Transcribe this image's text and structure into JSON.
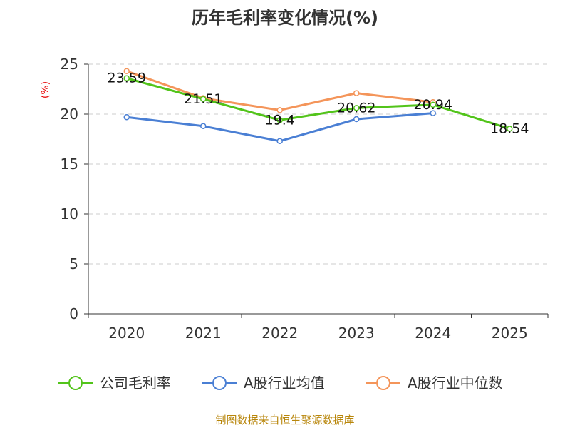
{
  "chart_data": {
    "type": "line",
    "title": "历年毛利率变化情况(%)",
    "ylabel": "(%)",
    "xlabel": "",
    "ylim": [
      0,
      25
    ],
    "yticks": [
      0,
      5,
      10,
      15,
      20,
      25
    ],
    "grid": "horizontal dashed",
    "categories": [
      "2020",
      "2021",
      "2022",
      "2023",
      "2024",
      "2025"
    ],
    "series": [
      {
        "name": "公司毛利率",
        "color": "#52c41a",
        "values": [
          23.59,
          21.51,
          19.4,
          20.62,
          20.94,
          18.54
        ],
        "labels": [
          "23.59",
          "21.51",
          "19.4",
          "20.62",
          "20.94",
          "18.54"
        ]
      },
      {
        "name": "A股行业均值",
        "color": "#4a7fd4",
        "values": [
          19.7,
          18.8,
          17.3,
          19.5,
          20.1,
          null
        ]
      },
      {
        "name": "A股行业中位数",
        "color": "#f4955a",
        "values": [
          24.3,
          21.6,
          20.4,
          22.1,
          21.2,
          null
        ]
      }
    ],
    "legend": "bottom",
    "source": "制图数据来自恒生聚源数据库"
  }
}
